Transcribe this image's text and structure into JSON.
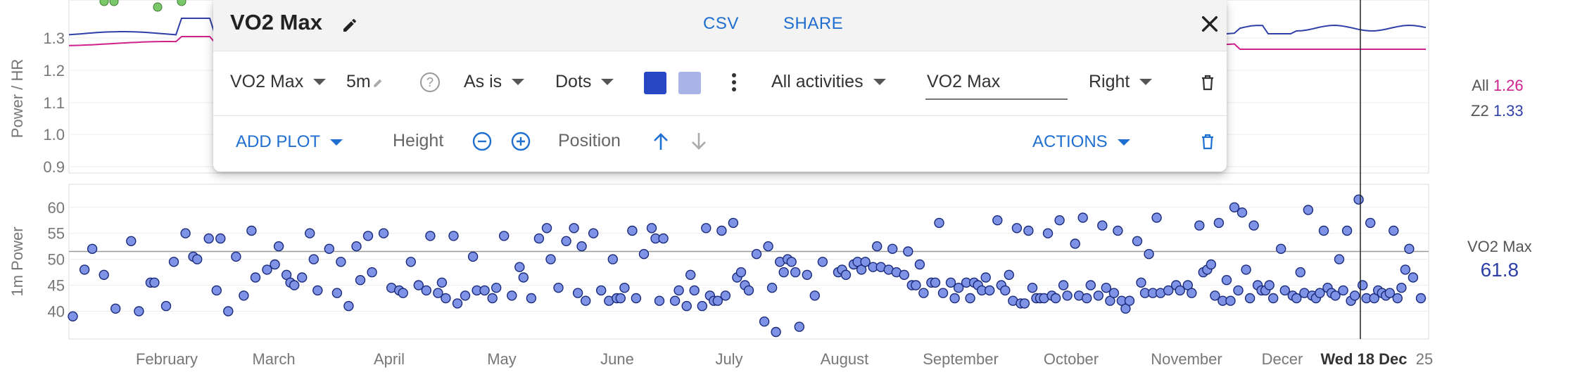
{
  "top_chart": {
    "ylabel": "Power / HR",
    "y_ticks": [
      "1.3",
      "1.2",
      "1.1",
      "1.0",
      "0.9"
    ],
    "legend": [
      {
        "label": "All",
        "value": "1.26",
        "color": "#d0208c"
      },
      {
        "label": "Z2",
        "value": "1.33",
        "color": "#2e3fa8"
      }
    ]
  },
  "chart_data": {
    "type": "scatter",
    "ylabel": "1m Power",
    "ylim": [
      36,
      62
    ],
    "y_ticks": [
      "60",
      "55",
      "50",
      "45",
      "40"
    ],
    "x_ticks": [
      "February",
      "March",
      "April",
      "May",
      "June",
      "July",
      "August",
      "September",
      "October",
      "November",
      "Decer",
      "Wed 18 Dec",
      "25"
    ],
    "reference_line": 51.5,
    "cursor_label": "Wed 18 Dec",
    "series": [
      {
        "name": "VO2 Max",
        "color": "#7f93e6",
        "stroke": "#1a2a7a",
        "points": [
          [
            1,
            39
          ],
          [
            4,
            48
          ],
          [
            6,
            52
          ],
          [
            9,
            47
          ],
          [
            12,
            40.5
          ],
          [
            16,
            53.5
          ],
          [
            18,
            40
          ],
          [
            21,
            45.5
          ],
          [
            22,
            45.5
          ],
          [
            25,
            41
          ],
          [
            27,
            49.5
          ],
          [
            30,
            55
          ],
          [
            32,
            50.5
          ],
          [
            33,
            50
          ],
          [
            36,
            54
          ],
          [
            38,
            44
          ],
          [
            39,
            54
          ],
          [
            41,
            40
          ],
          [
            43,
            50.5
          ],
          [
            45,
            43
          ],
          [
            47,
            55.5
          ],
          [
            48,
            46.5
          ],
          [
            51,
            48
          ],
          [
            53,
            49
          ],
          [
            54,
            52.5
          ],
          [
            56,
            47
          ],
          [
            57,
            45.5
          ],
          [
            58,
            45
          ],
          [
            60,
            46.5
          ],
          [
            62,
            55
          ],
          [
            63,
            50
          ],
          [
            64,
            44
          ],
          [
            67,
            52
          ],
          [
            69,
            43.5
          ],
          [
            70,
            49.5
          ],
          [
            72,
            41
          ],
          [
            74,
            52.5
          ],
          [
            75,
            46
          ],
          [
            77,
            54.5
          ],
          [
            78,
            47.5
          ],
          [
            81,
            55
          ],
          [
            83,
            44.5
          ],
          [
            85,
            44
          ],
          [
            86,
            43.5
          ],
          [
            88,
            49.5
          ],
          [
            90,
            45
          ],
          [
            92,
            44
          ],
          [
            93,
            54.5
          ],
          [
            95,
            43.5
          ],
          [
            96,
            45.5
          ],
          [
            97,
            42.5
          ],
          [
            99,
            54.5
          ],
          [
            100,
            41.5
          ],
          [
            102,
            43
          ],
          [
            104,
            50.5
          ],
          [
            105,
            44
          ],
          [
            107,
            44
          ],
          [
            109,
            42.5
          ],
          [
            110,
            44.5
          ],
          [
            112,
            54.5
          ],
          [
            114,
            43
          ],
          [
            116,
            48.5
          ],
          [
            117,
            46.5
          ],
          [
            119,
            42.5
          ],
          [
            121,
            54
          ],
          [
            123,
            56
          ],
          [
            124,
            50
          ],
          [
            126,
            44.5
          ],
          [
            128,
            53.5
          ],
          [
            130,
            56
          ],
          [
            131,
            43.5
          ],
          [
            132,
            52.5
          ],
          [
            133,
            42
          ],
          [
            135,
            55
          ],
          [
            137,
            44
          ],
          [
            139,
            42
          ],
          [
            140,
            50
          ],
          [
            141,
            42.5
          ],
          [
            142,
            42.5
          ],
          [
            143,
            44.5
          ],
          [
            145,
            55.5
          ],
          [
            146,
            42.5
          ],
          [
            148,
            51
          ],
          [
            150,
            56
          ],
          [
            151,
            54
          ],
          [
            152,
            42
          ],
          [
            153,
            54
          ],
          [
            156,
            42
          ],
          [
            157,
            44
          ],
          [
            159,
            41
          ],
          [
            160,
            47
          ],
          [
            161,
            44
          ],
          [
            163,
            41
          ],
          [
            164,
            56
          ],
          [
            165,
            43
          ],
          [
            166,
            42
          ],
          [
            167,
            42
          ],
          [
            168,
            55.5
          ],
          [
            169,
            43
          ],
          [
            171,
            57
          ],
          [
            172,
            46.5
          ],
          [
            173,
            47.5
          ],
          [
            174,
            45
          ],
          [
            175,
            44
          ],
          [
            177,
            51
          ],
          [
            179,
            38
          ],
          [
            180,
            52.5
          ],
          [
            181,
            44.5
          ],
          [
            182,
            36
          ],
          [
            183,
            49.5
          ],
          [
            184,
            47.5
          ],
          [
            185,
            50
          ],
          [
            186,
            49.5
          ],
          [
            187,
            47.5
          ],
          [
            188,
            37
          ],
          [
            190,
            47
          ],
          [
            192,
            43
          ],
          [
            194,
            49.5
          ],
          [
            198,
            47.5
          ],
          [
            199,
            48
          ],
          [
            200,
            47
          ],
          [
            202,
            49
          ],
          [
            203,
            49.5
          ],
          [
            204,
            48
          ],
          [
            205,
            49.5
          ],
          [
            207,
            48.5
          ],
          [
            208,
            52.5
          ],
          [
            209,
            48.5
          ],
          [
            211,
            48
          ],
          [
            212,
            52
          ],
          [
            213,
            47.5
          ],
          [
            215,
            47
          ],
          [
            216,
            51.5
          ],
          [
            217,
            45
          ],
          [
            218,
            45
          ],
          [
            219,
            49
          ],
          [
            220,
            43.5
          ],
          [
            222,
            45.5
          ],
          [
            223,
            45.5
          ],
          [
            224,
            57
          ],
          [
            225,
            43.5
          ],
          [
            227,
            45.5
          ],
          [
            228,
            42.5
          ],
          [
            229,
            44.5
          ],
          [
            231,
            45.5
          ],
          [
            232,
            42.5
          ],
          [
            233,
            45.5
          ],
          [
            234,
            45
          ],
          [
            235,
            44
          ],
          [
            236,
            46.5
          ],
          [
            237,
            44
          ],
          [
            239,
            57.5
          ],
          [
            240,
            45
          ],
          [
            241,
            44
          ],
          [
            242,
            47
          ],
          [
            243,
            42
          ],
          [
            244,
            56
          ],
          [
            245,
            41.5
          ],
          [
            246,
            41.5
          ],
          [
            247,
            55.5
          ],
          [
            248,
            44.5
          ],
          [
            249,
            42.5
          ],
          [
            250,
            42.5
          ],
          [
            251,
            42.5
          ],
          [
            252,
            55
          ],
          [
            253,
            43
          ],
          [
            254,
            42.5
          ],
          [
            255,
            57.5
          ],
          [
            256,
            45
          ],
          [
            257,
            43
          ],
          [
            259,
            53
          ],
          [
            260,
            43
          ],
          [
            261,
            58
          ],
          [
            262,
            42.5
          ],
          [
            263,
            45
          ],
          [
            265,
            43
          ],
          [
            266,
            56.5
          ],
          [
            267,
            44.5
          ],
          [
            268,
            42
          ],
          [
            269,
            43.5
          ],
          [
            270,
            55.5
          ],
          [
            271,
            42
          ],
          [
            272,
            40.5
          ],
          [
            273,
            42
          ],
          [
            275,
            53.5
          ],
          [
            276,
            45.5
          ],
          [
            277,
            43.5
          ],
          [
            278,
            51
          ],
          [
            279,
            43.5
          ],
          [
            280,
            58
          ],
          [
            281,
            43.5
          ],
          [
            283,
            44
          ],
          [
            285,
            45
          ],
          [
            286,
            44
          ],
          [
            288,
            45
          ],
          [
            289,
            43.5
          ],
          [
            291,
            56.5
          ],
          [
            292,
            47.5
          ],
          [
            293,
            48
          ],
          [
            294,
            49
          ],
          [
            295,
            43
          ],
          [
            296,
            57
          ],
          [
            297,
            42
          ],
          [
            298,
            46
          ],
          [
            299,
            42
          ],
          [
            300,
            60
          ],
          [
            301,
            44
          ],
          [
            302,
            59
          ],
          [
            303,
            48
          ],
          [
            304,
            42.5
          ],
          [
            305,
            56.5
          ],
          [
            306,
            45
          ],
          [
            307,
            44
          ],
          [
            308,
            44
          ],
          [
            309,
            45
          ],
          [
            310,
            42.5
          ],
          [
            312,
            52
          ],
          [
            313,
            44
          ],
          [
            315,
            43
          ],
          [
            316,
            42.5
          ],
          [
            317,
            47.5
          ],
          [
            318,
            43.5
          ],
          [
            319,
            59.5
          ],
          [
            320,
            43
          ],
          [
            321,
            42.5
          ],
          [
            322,
            43.5
          ],
          [
            323,
            55.5
          ],
          [
            324,
            44.5
          ],
          [
            325,
            43.5
          ],
          [
            326,
            43
          ],
          [
            327,
            50
          ],
          [
            328,
            44
          ],
          [
            329,
            55.5
          ],
          [
            330,
            42
          ],
          [
            331,
            43
          ],
          [
            332,
            61.5
          ],
          [
            333,
            45
          ],
          [
            334,
            42.5
          ],
          [
            335,
            57
          ],
          [
            336,
            42.5
          ],
          [
            337,
            44
          ],
          [
            338,
            43.5
          ],
          [
            339,
            43
          ],
          [
            340,
            43.5
          ],
          [
            341,
            55.5
          ],
          [
            342,
            42.5
          ],
          [
            343,
            44.5
          ],
          [
            344,
            48
          ],
          [
            345,
            52
          ],
          [
            346,
            46.5
          ],
          [
            348,
            42.5
          ]
        ]
      }
    ]
  },
  "panel": {
    "title": "VO2 Max",
    "csv_label": "CSV",
    "share_label": "SHARE",
    "metric_select": "VO2 Max",
    "window_value": "5m",
    "transform_select": "As is",
    "style_select": "Dots",
    "color_primary": "#2747c4",
    "color_secondary": "#a9b3e8",
    "activities_select": "All activities",
    "label_input_value": "VO2 Max",
    "axis_select": "Right",
    "add_plot_label": "ADD PLOT",
    "height_label": "Height",
    "position_label": "Position",
    "actions_label": "ACTIONS"
  },
  "right_legend": {
    "label": "VO2 Max",
    "value": "61.8"
  }
}
